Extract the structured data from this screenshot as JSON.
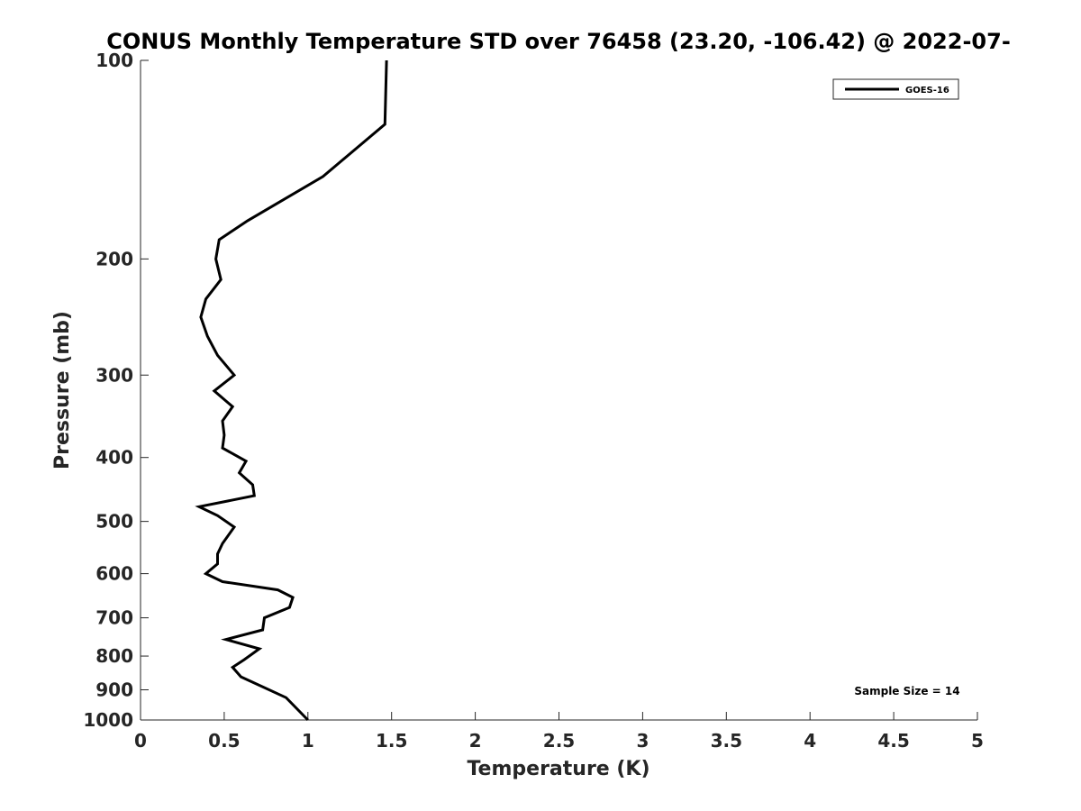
{
  "chart_data": {
    "type": "line",
    "title": "CONUS Monthly Temperature STD over 76458 (23.20, -106.42) @ 2022-07-",
    "xlabel": "Temperature (K)",
    "ylabel": "Pressure (mb)",
    "xlim": [
      0,
      5
    ],
    "ylim": [
      1000,
      100
    ],
    "y_scale": "log",
    "y_reversed": true,
    "x_ticks": [
      0,
      0.5,
      1,
      1.5,
      2,
      2.5,
      3,
      3.5,
      4,
      4.5,
      5
    ],
    "x_tick_labels": [
      "0",
      "0.5",
      "1",
      "1.5",
      "2",
      "2.5",
      "3",
      "3.5",
      "4",
      "4.5",
      "5"
    ],
    "y_ticks": [
      100,
      200,
      300,
      400,
      500,
      600,
      700,
      800,
      900,
      1000
    ],
    "y_tick_labels": [
      "100",
      "200",
      "300",
      "400",
      "500",
      "600",
      "700",
      "800",
      "900",
      "1000"
    ],
    "grid": false,
    "legend_position": "top-right",
    "annotation": "Sample Size = 14",
    "series": [
      {
        "name": "GOES-16",
        "color": "#000000",
        "x": [
          1.47,
          1.46,
          1.09,
          0.64,
          0.47,
          0.45,
          0.48,
          0.39,
          0.36,
          0.4,
          0.46,
          0.56,
          0.44,
          0.55,
          0.49,
          0.5,
          0.49,
          0.63,
          0.59,
          0.67,
          0.68,
          0.35,
          0.46,
          0.56,
          0.49,
          0.46,
          0.46,
          0.39,
          0.49,
          0.82,
          0.91,
          0.89,
          0.74,
          0.73,
          0.51,
          0.71,
          0.62,
          0.55,
          0.6,
          0.87,
          1.0
        ],
        "y": [
          100,
          125,
          150,
          175,
          187,
          200,
          215,
          230,
          245,
          262,
          280,
          300,
          317,
          335,
          352,
          370,
          387,
          405,
          422,
          440,
          457,
          475,
          490,
          510,
          540,
          560,
          580,
          600,
          617,
          635,
          652,
          675,
          700,
          730,
          755,
          780,
          810,
          832,
          860,
          925,
          1000
        ]
      }
    ]
  }
}
